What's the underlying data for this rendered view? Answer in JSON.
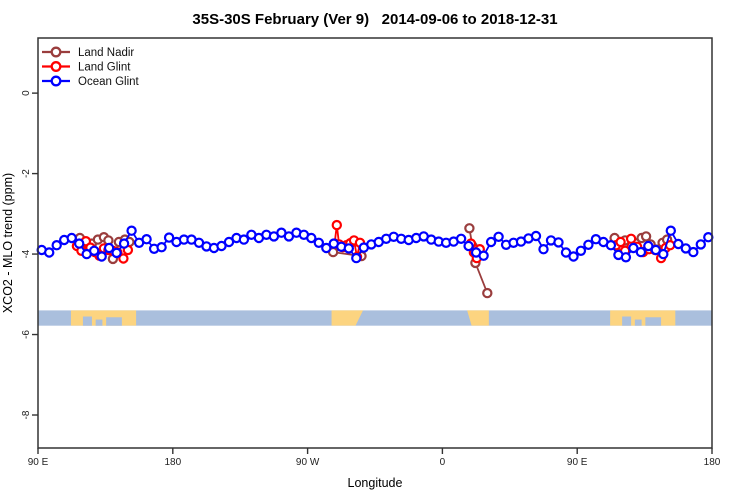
{
  "chart_data": {
    "type": "line",
    "title": "35S-30S February (Ver 9)   2014-09-06 to 2018-12-31",
    "xlabel": "Longitude",
    "ylabel": "XCO2 - MLO trend (ppm)",
    "grid": false,
    "legend_position": "top-left-inside",
    "x_axis": {
      "description": "longitude wrapping eastward from 90E to 180; position = degrees east of 90E",
      "range_deg_along_axis": [
        0,
        450
      ],
      "ticks": [
        {
          "pos": 0,
          "label": "90 E"
        },
        {
          "pos": 90,
          "label": "180"
        },
        {
          "pos": 180,
          "label": "90 W"
        },
        {
          "pos": 270,
          "label": "0"
        },
        {
          "pos": 360,
          "label": "90 E"
        },
        {
          "pos": 450,
          "label": "180"
        }
      ]
    },
    "y_axis": {
      "range": [
        1.37,
        -8.82
      ],
      "ticks": [
        {
          "pos": 0,
          "label": "0"
        },
        {
          "pos": -2,
          "label": "-2"
        },
        {
          "pos": -4,
          "label": "-4"
        },
        {
          "pos": -6,
          "label": "-6"
        },
        {
          "pos": -8,
          "label": "-8"
        }
      ]
    },
    "series": [
      {
        "name": "Land Nadir",
        "color": "#9a3d3d",
        "marker": "open-circle",
        "segments": [
          [
            [
              28,
              -3.6
            ],
            [
              31,
              -3.72
            ],
            [
              36,
              -3.74
            ],
            [
              40,
              -3.64
            ],
            [
              44,
              -3.58
            ],
            [
              47,
              -3.66
            ],
            [
              50,
              -4.12
            ],
            [
              54,
              -3.7
            ],
            [
              58,
              -3.64
            ],
            [
              61,
              -3.7
            ]
          ],
          [
            [
              197,
              -3.95
            ],
            [
              216,
              -4.05
            ]
          ],
          [
            [
              288,
              -3.36
            ],
            [
              290,
              -3.8
            ],
            [
              292,
              -4.22
            ],
            [
              300,
              -4.97
            ]
          ],
          [
            [
              385,
              -3.6
            ],
            [
              388,
              -3.8
            ],
            [
              392,
              -3.66
            ],
            [
              399,
              -3.73
            ],
            [
              403,
              -3.6
            ],
            [
              406,
              -3.56
            ],
            [
              409,
              -3.76
            ],
            [
              413,
              -3.89
            ],
            [
              417,
              -3.72
            ],
            [
              420,
              -3.64
            ]
          ]
        ]
      },
      {
        "name": "Land Glint",
        "color": "#ff0000",
        "marker": "open-circle",
        "segments": [
          [
            [
              26,
              -3.8
            ],
            [
              29,
              -3.92
            ],
            [
              32,
              -3.68
            ],
            [
              35,
              -3.84
            ],
            [
              38,
              -3.95
            ],
            [
              41,
              -4.04
            ],
            [
              44,
              -3.86
            ],
            [
              47,
              -3.9
            ],
            [
              50,
              -3.92
            ],
            [
              53,
              -3.96
            ],
            [
              57,
              -4.11
            ],
            [
              60,
              -3.9
            ]
          ],
          [
            [
              198,
              -3.74
            ],
            [
              199.5,
              -3.28
            ],
            [
              201,
              -3.76
            ],
            [
              203.5,
              -3.83
            ],
            [
              206,
              -3.78
            ],
            [
              208.5,
              -3.73
            ],
            [
              211,
              -3.66
            ],
            [
              213,
              -4.07
            ],
            [
              215,
              -3.72
            ]
          ],
          [
            [
              289,
              -3.74
            ],
            [
              291,
              -3.96
            ],
            [
              293,
              -4.1
            ],
            [
              295,
              -3.88
            ]
          ],
          [
            [
              386,
              -3.78
            ],
            [
              389,
              -3.7
            ],
            [
              392,
              -3.92
            ],
            [
              396,
              -3.62
            ],
            [
              400,
              -3.82
            ],
            [
              404,
              -3.95
            ],
            [
              408,
              -3.88
            ],
            [
              412,
              -3.9
            ],
            [
              416,
              -4.1
            ],
            [
              419,
              -3.85
            ],
            [
              422,
              -3.78
            ]
          ]
        ]
      },
      {
        "name": "Ocean Glint",
        "color": "#0000ff",
        "marker": "open-circle",
        "segments": [
          [
            [
              2.5,
              -3.9
            ],
            [
              7.5,
              -3.96
            ],
            [
              12.5,
              -3.78
            ],
            [
              17.5,
              -3.65
            ],
            [
              22.5,
              -3.6
            ],
            [
              27.5,
              -3.74
            ],
            [
              32.5,
              -4.0
            ],
            [
              37.5,
              -3.92
            ],
            [
              42.5,
              -4.06
            ],
            [
              47.5,
              -3.85
            ],
            [
              52.5,
              -3.97
            ],
            [
              57.5,
              -3.74
            ],
            [
              62.5,
              -3.42
            ],
            [
              67.5,
              -3.72
            ],
            [
              72.5,
              -3.63
            ],
            [
              77.5,
              -3.87
            ],
            [
              82.5,
              -3.83
            ],
            [
              87.5,
              -3.59
            ],
            [
              92.5,
              -3.7
            ],
            [
              97.5,
              -3.64
            ],
            [
              102.5,
              -3.64
            ],
            [
              107.5,
              -3.72
            ],
            [
              112.5,
              -3.81
            ],
            [
              117.5,
              -3.85
            ],
            [
              122.5,
              -3.8
            ],
            [
              127.5,
              -3.7
            ],
            [
              132.5,
              -3.6
            ],
            [
              137.5,
              -3.64
            ],
            [
              142.5,
              -3.52
            ],
            [
              147.5,
              -3.6
            ],
            [
              152.5,
              -3.52
            ],
            [
              157.5,
              -3.56
            ],
            [
              162.5,
              -3.47
            ],
            [
              167.5,
              -3.56
            ],
            [
              172.5,
              -3.47
            ],
            [
              177.5,
              -3.52
            ],
            [
              182.5,
              -3.6
            ],
            [
              187.5,
              -3.72
            ],
            [
              192.5,
              -3.85
            ],
            [
              197.5,
              -3.74
            ],
            [
              202.5,
              -3.82
            ],
            [
              207.5,
              -3.86
            ],
            [
              212.5,
              -4.1
            ],
            [
              217.5,
              -3.84
            ],
            [
              222.5,
              -3.76
            ],
            [
              227.5,
              -3.7
            ],
            [
              232.5,
              -3.62
            ],
            [
              237.5,
              -3.57
            ],
            [
              242.5,
              -3.62
            ],
            [
              247.5,
              -3.65
            ],
            [
              252.5,
              -3.6
            ],
            [
              257.5,
              -3.56
            ],
            [
              262.5,
              -3.64
            ],
            [
              267.5,
              -3.69
            ],
            [
              272.5,
              -3.72
            ],
            [
              277.5,
              -3.69
            ],
            [
              282.5,
              -3.62
            ],
            [
              287.5,
              -3.8
            ],
            [
              292.5,
              -3.96
            ],
            [
              297.5,
              -4.04
            ],
            [
              302.5,
              -3.7
            ],
            [
              307.5,
              -3.57
            ],
            [
              312.5,
              -3.77
            ],
            [
              317.5,
              -3.72
            ],
            [
              322.5,
              -3.69
            ],
            [
              327.5,
              -3.61
            ],
            [
              332.5,
              -3.55
            ],
            [
              337.5,
              -3.88
            ],
            [
              342.5,
              -3.66
            ],
            [
              347.5,
              -3.71
            ],
            [
              352.5,
              -3.96
            ],
            [
              357.5,
              -4.06
            ],
            [
              362.5,
              -3.92
            ],
            [
              367.5,
              -3.77
            ],
            [
              372.5,
              -3.63
            ],
            [
              377.5,
              -3.7
            ],
            [
              382.5,
              -3.78
            ],
            [
              387.5,
              -4.02
            ],
            [
              392.5,
              -4.08
            ],
            [
              397.5,
              -3.85
            ],
            [
              402.5,
              -3.95
            ],
            [
              407.5,
              -3.8
            ],
            [
              412.5,
              -3.9
            ],
            [
              417.5,
              -4.0
            ],
            [
              422.5,
              -3.42
            ],
            [
              427.5,
              -3.75
            ],
            [
              432.5,
              -3.86
            ],
            [
              437.5,
              -3.95
            ],
            [
              442.5,
              -3.76
            ],
            [
              447.5,
              -3.58
            ]
          ]
        ]
      }
    ],
    "map_band": {
      "description": "land/ocean strip for the 35S-30S latitude band",
      "ocean_color": "#aabfdd",
      "land_color": "#fcd480",
      "y_top": -5.4,
      "y_bottom": -5.78,
      "land_segments": [
        {
          "start": 22,
          "end": 65.5,
          "region": "Australia",
          "notches": [
            {
              "start": 30,
              "end": 36,
              "depth": 0.6
            },
            {
              "start": 38.5,
              "end": 43,
              "depth": 0.4
            },
            {
              "start": 45.5,
              "end": 56,
              "depth": 0.55
            }
          ]
        },
        {
          "start": 196,
          "end": 217,
          "region": "South America",
          "taper_right": 5
        },
        {
          "start": 286.5,
          "end": 301,
          "region": "Southern Africa",
          "taper_left": 3
        },
        {
          "start": 382,
          "end": 425.5,
          "region": "Australia",
          "notches": [
            {
              "start": 390,
              "end": 396,
              "depth": 0.6
            },
            {
              "start": 398.5,
              "end": 403,
              "depth": 0.4
            },
            {
              "start": 405.5,
              "end": 416,
              "depth": 0.55
            }
          ]
        }
      ]
    }
  },
  "legend": {
    "items": [
      {
        "label": "Land Nadir",
        "color": "#9a3d3d"
      },
      {
        "label": "Land Glint",
        "color": "#ff0000"
      },
      {
        "label": "Ocean Glint",
        "color": "#0000ff"
      }
    ]
  },
  "frame": {
    "color": "#333333",
    "background": "#ffffff"
  }
}
